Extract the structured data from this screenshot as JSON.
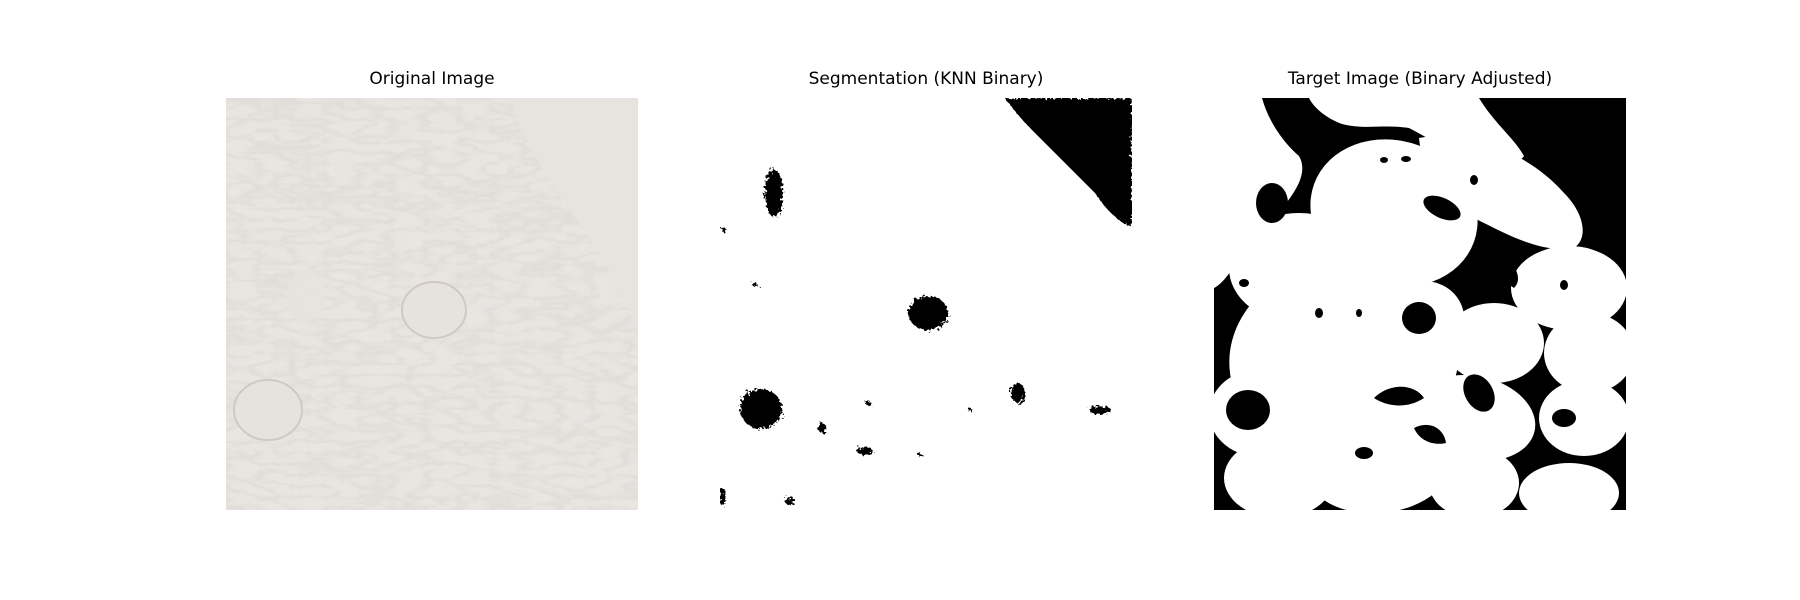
{
  "panels": [
    {
      "title": "Original Image"
    },
    {
      "title": "Segmentation (KNN Binary)"
    },
    {
      "title": "Target Image (Binary Adjusted)"
    }
  ],
  "colors": {
    "background": "#ffffff",
    "tissue": "#e8e4df",
    "foreground": "#000000",
    "mask_white": "#ffffff"
  }
}
